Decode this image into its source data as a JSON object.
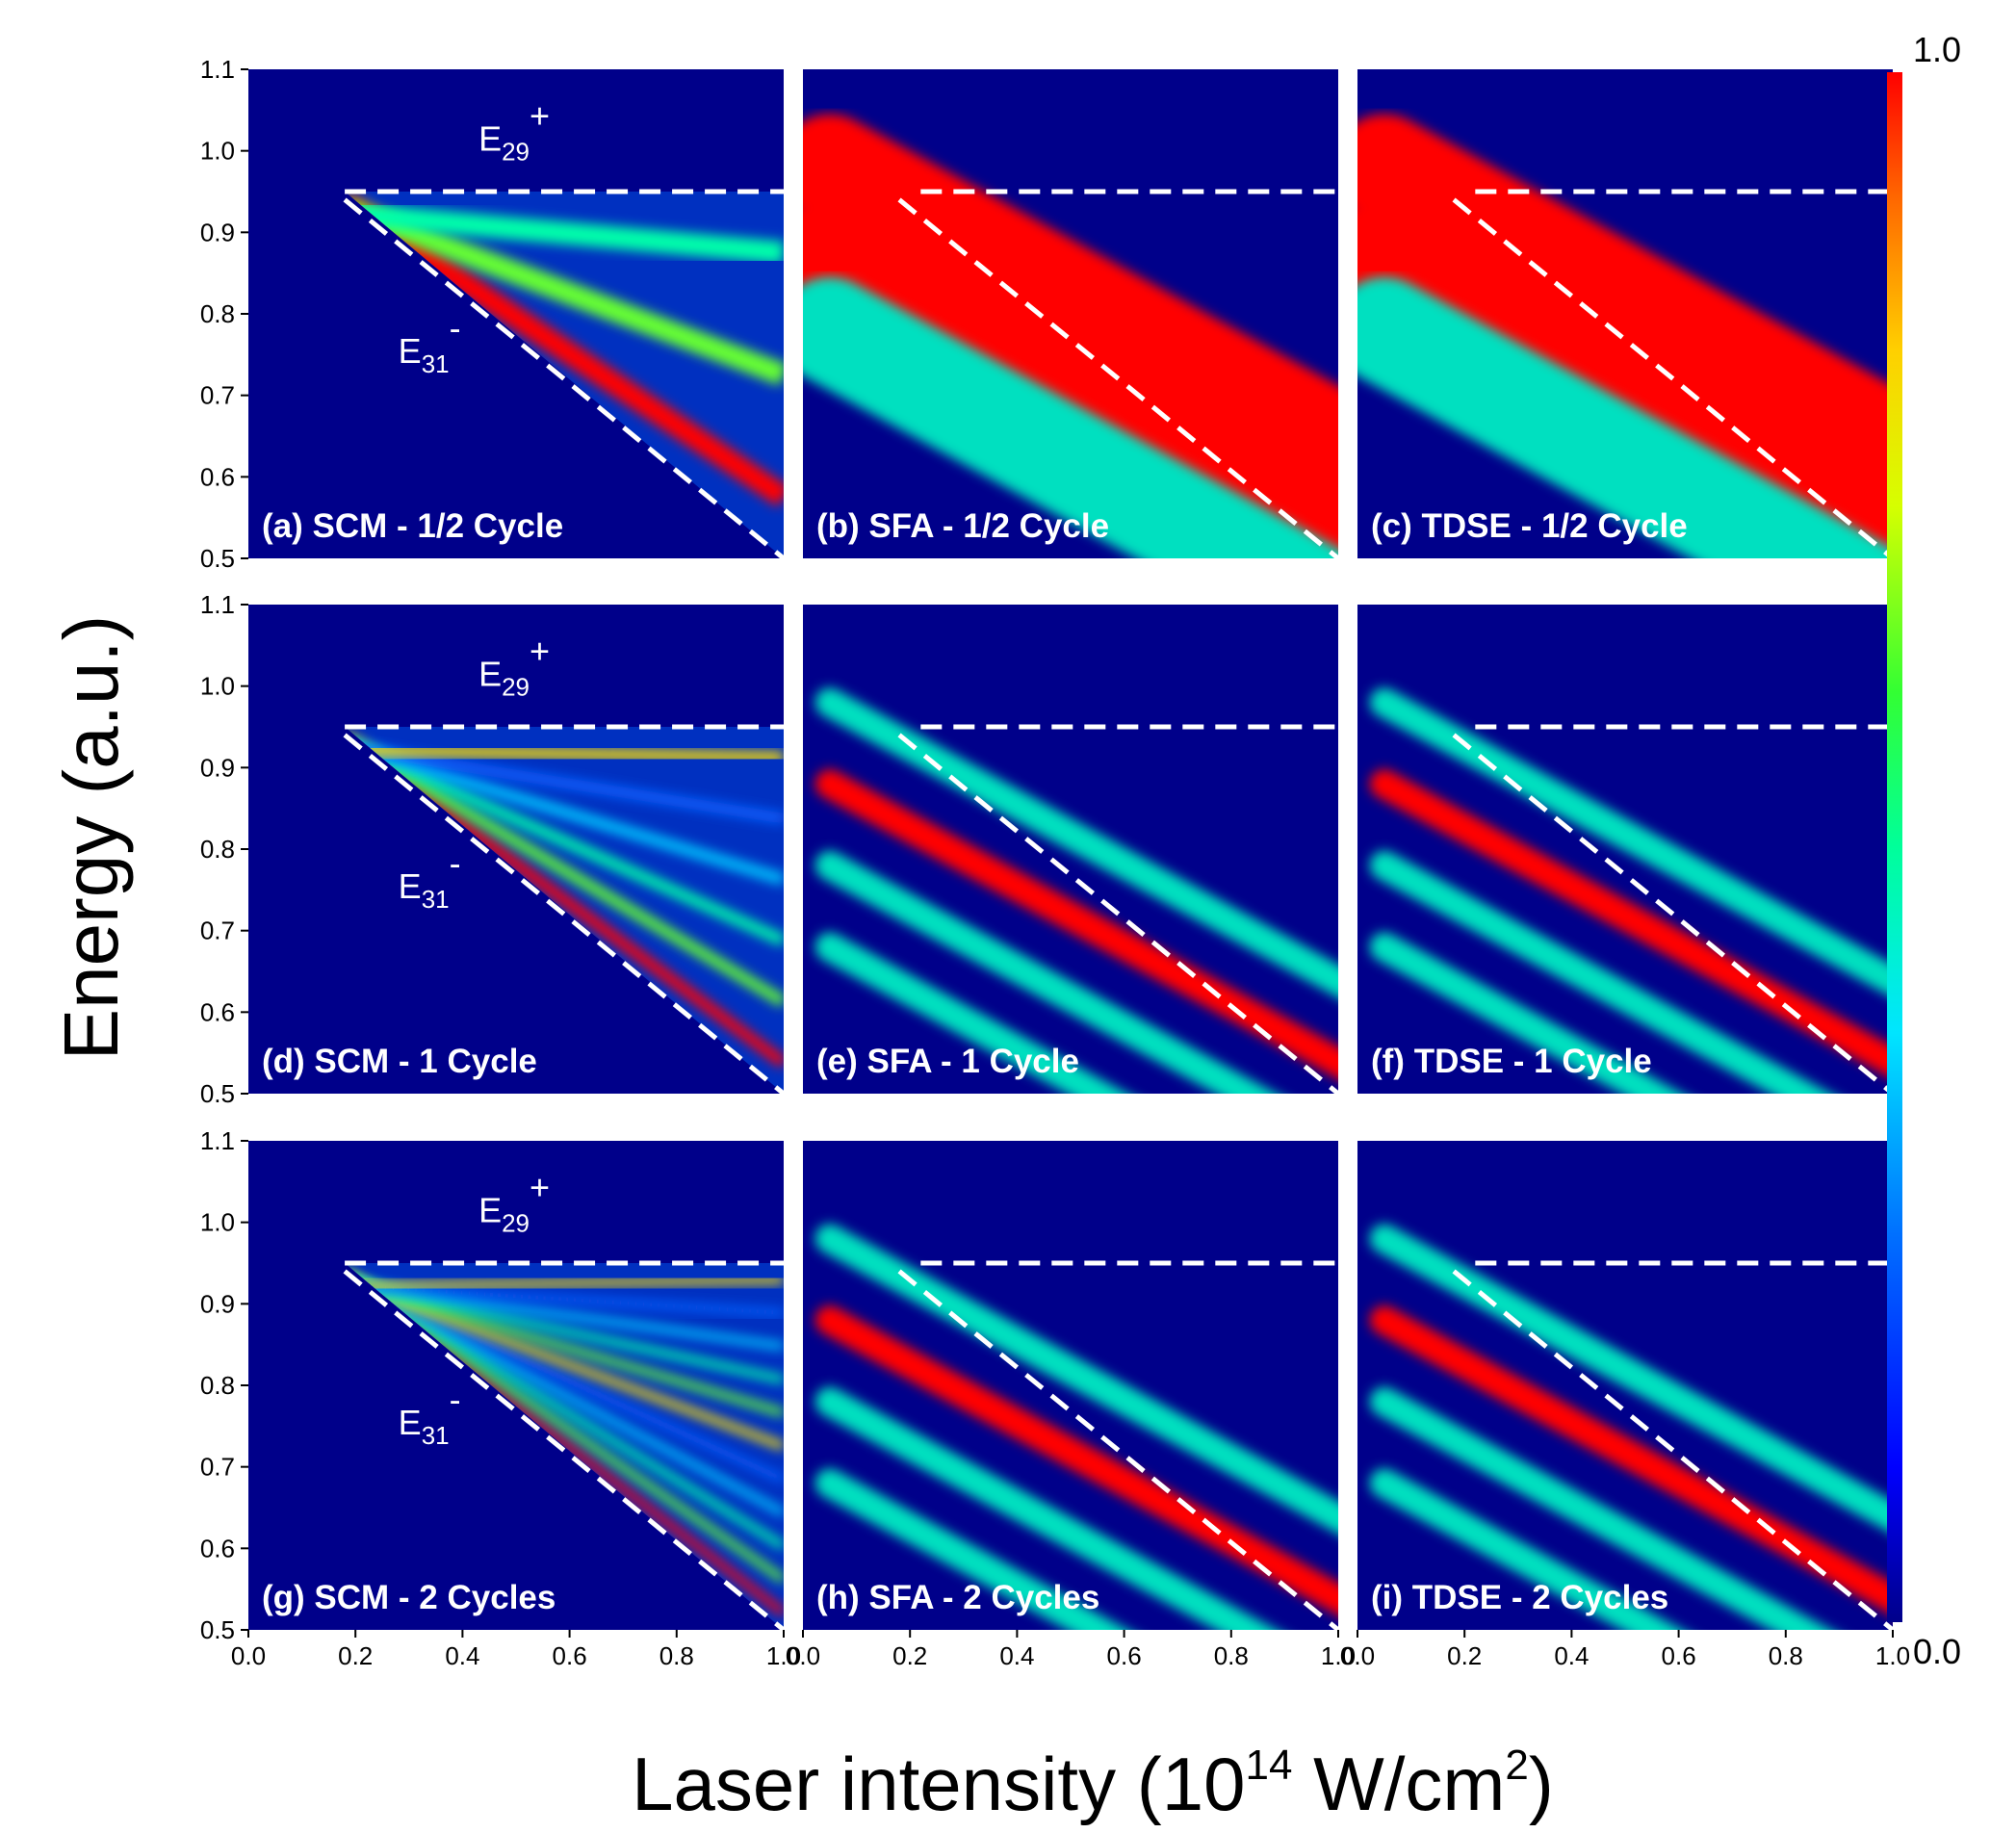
{
  "chart_data": {
    "type": "heatmap",
    "ylabel": "Energy (a.u.)",
    "xlabel": {
      "main": "Laser intensity (10",
      "sup": "14",
      "unit": " W/cm",
      "unit_sup": "2",
      "close": ")"
    },
    "xlim": [
      0.0,
      1.0
    ],
    "ylim": [
      0.5,
      1.1
    ],
    "x_ticks": [
      "0.0",
      "0.2",
      "0.4",
      "0.6",
      "0.8",
      "1.0"
    ],
    "y_ticks": [
      "0.5",
      "0.6",
      "0.7",
      "0.8",
      "0.9",
      "1.0",
      "1.1"
    ],
    "colorbar": {
      "min_label": "0.0",
      "max_label": "1.0",
      "colors": [
        "#00008a",
        "#0000ff",
        "#0070ff",
        "#00e5ff",
        "#00ff9a",
        "#33ff33",
        "#d6ff00",
        "#ffd000",
        "#ff6600",
        "#ff0000"
      ]
    },
    "annotations": [
      {
        "name": "E29",
        "base": "E",
        "sub": "29",
        "sup": "+"
      },
      {
        "name": "E31",
        "base": "E",
        "sub": "31",
        "sup": "-"
      }
    ],
    "boundary_lines": {
      "upper_energy": 0.95,
      "lower_line": [
        [
          0.18,
          0.94
        ],
        [
          1.0,
          0.5
        ]
      ]
    },
    "rows": [
      {
        "cycles": 0.5,
        "ridge_count": 3
      },
      {
        "cycles": 1,
        "ridge_count": 6
      },
      {
        "cycles": 2,
        "ridge_count": 11
      }
    ],
    "panels": [
      {
        "label": "(a) SCM - 1/2 Cycle",
        "method": "SCM",
        "row": 0,
        "col": 0
      },
      {
        "label": "(b) SFA - 1/2 Cycle",
        "method": "SFA",
        "row": 0,
        "col": 1
      },
      {
        "label": "(c) TDSE - 1/2 Cycle",
        "method": "TDSE",
        "row": 0,
        "col": 2
      },
      {
        "label": "(d) SCM - 1 Cycle",
        "method": "SCM",
        "row": 1,
        "col": 0
      },
      {
        "label": "(e) SFA - 1 Cycle",
        "method": "SFA",
        "row": 1,
        "col": 1
      },
      {
        "label": "(f) TDSE - 1 Cycle",
        "method": "TDSE",
        "row": 1,
        "col": 2
      },
      {
        "label": "(g) SCM - 2 Cycles",
        "method": "SCM",
        "row": 2,
        "col": 0
      },
      {
        "label": "(h) SFA - 2 Cycles",
        "method": "SFA",
        "row": 2,
        "col": 1
      },
      {
        "label": "(i) TDSE - 2 Cycles",
        "method": "TDSE",
        "row": 2,
        "col": 2
      }
    ]
  }
}
